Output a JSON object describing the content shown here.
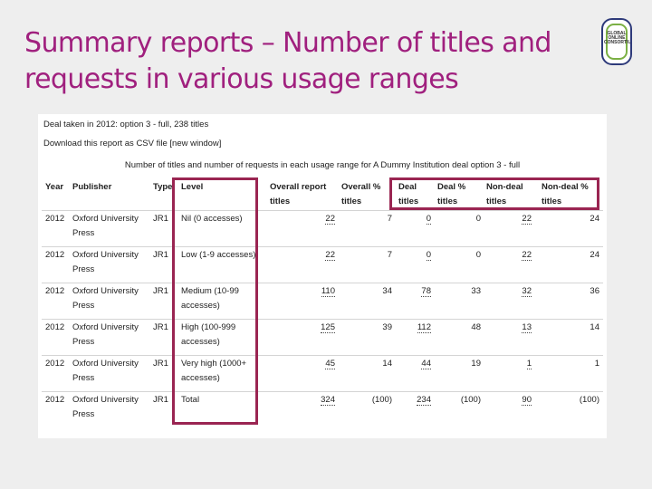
{
  "slide": {
    "title": "Summary reports – Number of titles and requests in various usage ranges",
    "logo_text": "GLOBAL ONLINE CONSORTIUM"
  },
  "report": {
    "deal_line": "Deal taken in 2012: option 3 - full, 238 titles",
    "download_line": "Download this report as CSV file [new window]",
    "caption": "Number of titles and number of requests in each usage range for A Dummy Institution deal option 3 - full",
    "headers": {
      "year": "Year",
      "publisher": "Publisher",
      "type": "Type",
      "level": "Level",
      "overall_report": "Overall report titles",
      "overall_pct": "Overall % titles",
      "deal": "Deal titles",
      "deal_pct": "Deal % titles",
      "nondeal": "Non-deal titles",
      "nondeal_pct": "Non-deal % titles"
    },
    "rows": [
      {
        "year": "2012",
        "publisher": "Oxford University Press",
        "type": "JR1",
        "level": "Nil (0 accesses)",
        "overall": "22",
        "overall_pct": "7",
        "deal": "0",
        "deal_pct": "0",
        "nondeal": "22",
        "nondeal_pct": "24"
      },
      {
        "year": "2012",
        "publisher": "Oxford University Press",
        "type": "JR1",
        "level": "Low (1-9 accesses)",
        "overall": "22",
        "overall_pct": "7",
        "deal": "0",
        "deal_pct": "0",
        "nondeal": "22",
        "nondeal_pct": "24"
      },
      {
        "year": "2012",
        "publisher": "Oxford University Press",
        "type": "JR1",
        "level": "Medium (10-99 accesses)",
        "overall": "110",
        "overall_pct": "34",
        "deal": "78",
        "deal_pct": "33",
        "nondeal": "32",
        "nondeal_pct": "36"
      },
      {
        "year": "2012",
        "publisher": "Oxford University Press",
        "type": "JR1",
        "level": "High (100-999 accesses)",
        "overall": "125",
        "overall_pct": "39",
        "deal": "112",
        "deal_pct": "48",
        "nondeal": "13",
        "nondeal_pct": "14"
      },
      {
        "year": "2012",
        "publisher": "Oxford University Press",
        "type": "JR1",
        "level": "Very high (1000+ accesses)",
        "overall": "45",
        "overall_pct": "14",
        "deal": "44",
        "deal_pct": "19",
        "nondeal": "1",
        "nondeal_pct": "1"
      },
      {
        "year": "2012",
        "publisher": "Oxford University Press",
        "type": "JR1",
        "level": "Total",
        "overall": "324",
        "overall_pct": "(100)",
        "deal": "234",
        "deal_pct": "(100)",
        "nondeal": "90",
        "nondeal_pct": "(100)"
      }
    ]
  },
  "colors": {
    "title": "#a0207e",
    "highlight": "#9a2552"
  }
}
